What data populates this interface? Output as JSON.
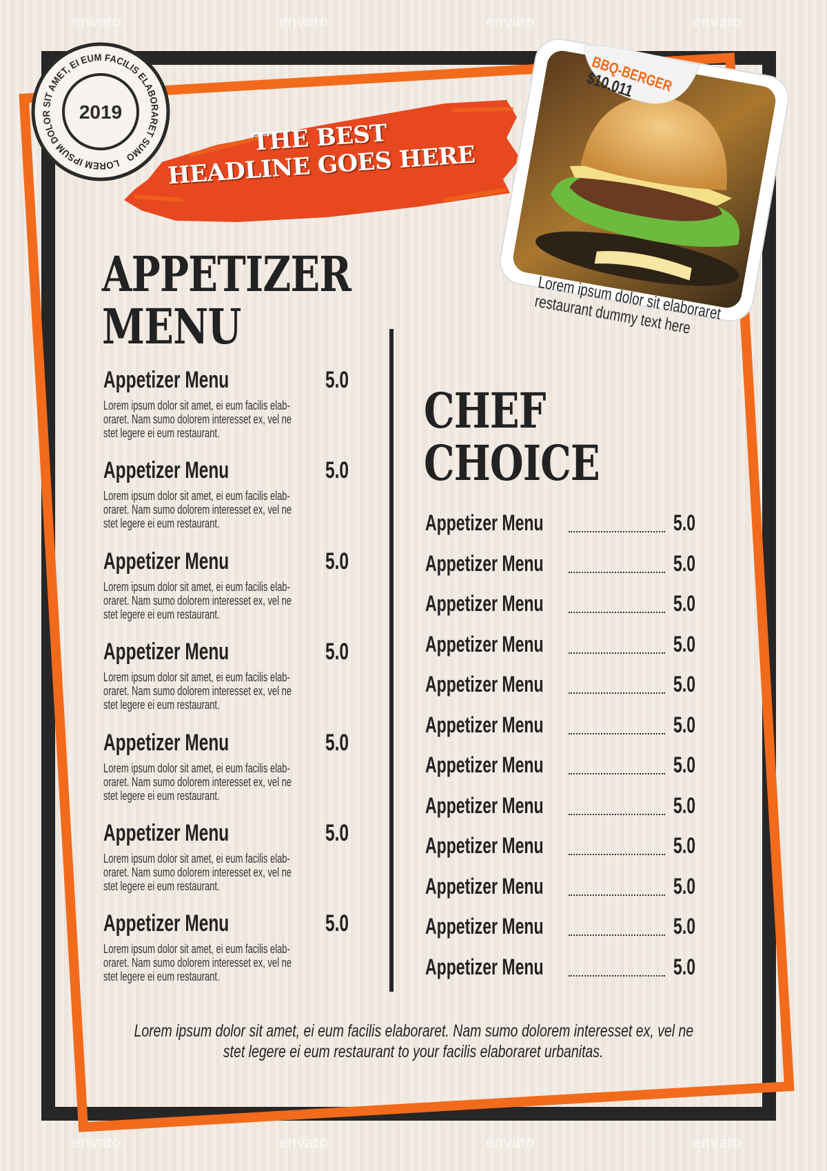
{
  "stamp": {
    "ring_text": "LOREM IPSUM DOLOR SIT AMET, EI EUM FACILIS ELABORARET SUMO",
    "year": "2019"
  },
  "headline": {
    "line1": "THE BEST",
    "line2": "HEADLINE GOES HERE"
  },
  "feature": {
    "name": "BBQ-BERGER",
    "price": "$10.011",
    "caption_line1": "Lorem ipsum dolor sit elaboraret",
    "caption_line2": "restaurant dummy text here"
  },
  "appetizer": {
    "title_line1": "APPETIZER",
    "title_line2": "MENU",
    "items": [
      {
        "name": "Appetizer Menu",
        "price": "5.0",
        "desc": [
          "Lorem ipsum dolor sit amet, ei eum facilis elab-",
          "oraret. Nam sumo dolorem interesset ex, vel ne",
          "stet legere ei eum restaurant."
        ]
      },
      {
        "name": "Appetizer Menu",
        "price": "5.0",
        "desc": [
          "Lorem ipsum dolor sit amet, ei eum facilis elab-",
          "oraret. Nam sumo dolorem interesset ex, vel ne",
          "stet legere ei eum restaurant."
        ]
      },
      {
        "name": "Appetizer Menu",
        "price": "5.0",
        "desc": [
          "Lorem ipsum dolor sit amet, ei eum facilis elab-",
          "oraret. Nam sumo dolorem interesset ex, vel ne",
          "stet legere ei eum restaurant."
        ]
      },
      {
        "name": "Appetizer Menu",
        "price": "5.0",
        "desc": [
          "Lorem ipsum dolor sit amet, ei eum facilis elab-",
          "oraret. Nam sumo dolorem interesset ex, vel ne",
          "stet legere ei eum restaurant."
        ]
      },
      {
        "name": "Appetizer Menu",
        "price": "5.0",
        "desc": [
          "Lorem ipsum dolor sit amet, ei eum facilis elab-",
          "oraret. Nam sumo dolorem interesset ex, vel ne",
          "stet legere ei eum restaurant."
        ]
      },
      {
        "name": "Appetizer Menu",
        "price": "5.0",
        "desc": [
          "Lorem ipsum dolor sit amet, ei eum facilis elab-",
          "oraret. Nam sumo dolorem interesset ex, vel ne",
          "stet legere ei eum restaurant."
        ]
      },
      {
        "name": "Appetizer Menu",
        "price": "5.0",
        "desc": [
          "Lorem ipsum dolor sit amet, ei eum facilis elab-",
          "oraret. Nam sumo dolorem interesset ex, vel ne",
          "stet legere ei eum restaurant."
        ]
      }
    ]
  },
  "chef": {
    "title_line1": "CHEF",
    "title_line2": "CHOICE",
    "items": [
      {
        "name": "Appetizer Menu",
        "price": "5.0"
      },
      {
        "name": "Appetizer Menu",
        "price": "5.0"
      },
      {
        "name": "Appetizer Menu",
        "price": "5.0"
      },
      {
        "name": "Appetizer Menu",
        "price": "5.0"
      },
      {
        "name": "Appetizer Menu",
        "price": "5.0"
      },
      {
        "name": "Appetizer Menu",
        "price": "5.0"
      },
      {
        "name": "Appetizer Menu",
        "price": "5.0"
      },
      {
        "name": "Appetizer Menu",
        "price": "5.0"
      },
      {
        "name": "Appetizer Menu",
        "price": "5.0"
      },
      {
        "name": "Appetizer Menu",
        "price": "5.0"
      },
      {
        "name": "Appetizer Menu",
        "price": "5.0"
      },
      {
        "name": "Appetizer Menu",
        "price": "5.0"
      }
    ]
  },
  "footer": {
    "line1": "Lorem ipsum dolor sit amet, ei eum facilis elaboraret. Nam sumo dolorem interesset ex, vel ne",
    "line2": "stet legere ei eum restaurant to your facilis elaboraret urbanitas."
  },
  "watermark": "envato",
  "colors": {
    "accent": "#f26a1b",
    "brush": "#e8481f",
    "frame": "#262626",
    "paper": "#efe7df"
  }
}
